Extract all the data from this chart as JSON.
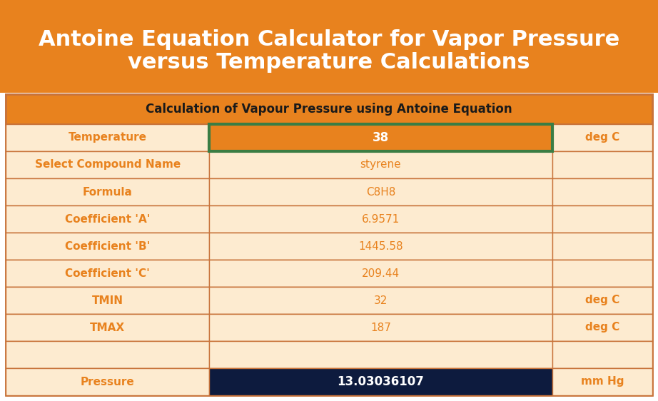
{
  "title_line1": "Antoine Equation Calculator for Vapor Pressure",
  "title_line2": "versus Temperature Calculations",
  "title_bg": "#E8821E",
  "title_color": "#FFFFFF",
  "table_header": "Calculation of Vapour Pressure using Antoine Equation",
  "table_header_bg": "#E8821E",
  "table_header_color": "#1A1A1A",
  "table_bg": "#FDEBD0",
  "cell_border": "#C8733A",
  "outer_border": "#C8733A",
  "orange_color": "#E8821E",
  "dark_navy": "#0D1B3E",
  "green_border": "#3A7D44",
  "rows": [
    {
      "label": "Temperature",
      "value": "38",
      "unit": "deg C",
      "value_bg": "#E8821E",
      "value_color": "#FFFFFF",
      "value_border": "#3A7D44",
      "label_bold": true,
      "value_bold": true
    },
    {
      "label": "Select Compound Name",
      "value": "styrene",
      "unit": "",
      "value_bg": "#FDEBD0",
      "value_color": "#E8821E",
      "value_border": null,
      "label_bold": true,
      "value_bold": false
    },
    {
      "label": "Formula",
      "value": "C8H8",
      "unit": "",
      "value_bg": "#FDEBD0",
      "value_color": "#E8821E",
      "value_border": null,
      "label_bold": true,
      "value_bold": false
    },
    {
      "label": "Coefficient 'A'",
      "value": "6.9571",
      "unit": "",
      "value_bg": "#FDEBD0",
      "value_color": "#E8821E",
      "value_border": null,
      "label_bold": true,
      "value_bold": false
    },
    {
      "label": "Coefficient 'B'",
      "value": "1445.58",
      "unit": "",
      "value_bg": "#FDEBD0",
      "value_color": "#E8821E",
      "value_border": null,
      "label_bold": true,
      "value_bold": false
    },
    {
      "label": "Coefficient 'C'",
      "value": "209.44",
      "unit": "",
      "value_bg": "#FDEBD0",
      "value_color": "#E8821E",
      "value_border": null,
      "label_bold": true,
      "value_bold": false
    },
    {
      "label": "TMIN",
      "value": "32",
      "unit": "deg C",
      "value_bg": "#FDEBD0",
      "value_color": "#E8821E",
      "value_border": null,
      "label_bold": true,
      "value_bold": false
    },
    {
      "label": "TMAX",
      "value": "187",
      "unit": "deg C",
      "value_bg": "#FDEBD0",
      "value_color": "#E8821E",
      "value_border": null,
      "label_bold": true,
      "value_bold": false
    },
    {
      "label": "",
      "value": "",
      "unit": "",
      "value_bg": "#FDEBD0",
      "value_color": "#E8821E",
      "value_border": null,
      "label_bold": false,
      "value_bold": false
    },
    {
      "label": "Pressure",
      "value": "13.03036107",
      "unit": "mm Hg",
      "value_bg": "#0D1B3E",
      "value_color": "#FFFFFF",
      "value_border": null,
      "label_bold": true,
      "value_bold": true
    }
  ],
  "figsize": [
    9.22,
    5.62
  ],
  "dpi": 100
}
